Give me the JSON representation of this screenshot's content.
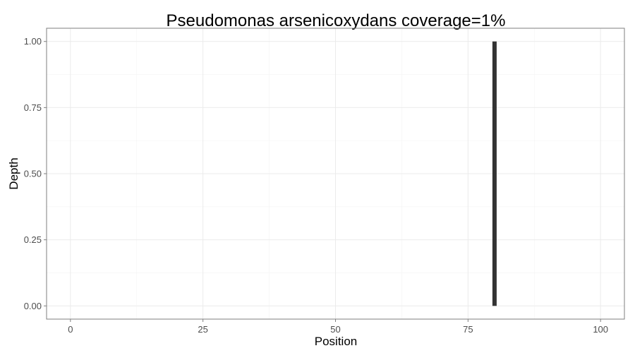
{
  "chart_data": {
    "type": "bar",
    "title": "Pseudomonas arsenicoxydans coverage=1%",
    "xlabel": "Position",
    "ylabel": "Depth",
    "xlim": [
      -4.5,
      104.5
    ],
    "ylim": [
      -0.05,
      1.05
    ],
    "x_ticks": [
      0,
      25,
      50,
      75,
      100
    ],
    "x_tick_labels": [
      "0",
      "25",
      "50",
      "75",
      "100"
    ],
    "y_ticks": [
      0,
      0.25,
      0.5,
      0.75,
      1
    ],
    "y_tick_labels": [
      "0.00",
      "0.25",
      "0.50",
      "0.75",
      "1.00"
    ],
    "grid": true,
    "bar_color": "#333333",
    "panel_border_color": "#7f7f7f",
    "grid_color": "#ebebeb",
    "points": [
      {
        "x": 80,
        "y": 1.0
      }
    ]
  }
}
